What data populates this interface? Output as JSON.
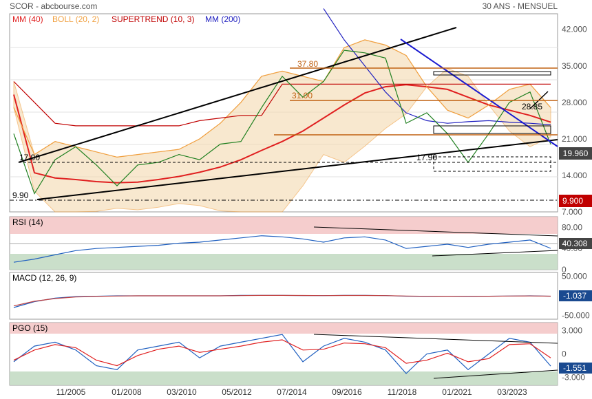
{
  "header": {
    "left": "SCOR - abcbourse.com",
    "right": "30 ANS - MENSUEL"
  },
  "legend": [
    {
      "label": "MM (40)",
      "color": "#e02020"
    },
    {
      "label": "BOLL (20, 2)",
      "color": "#f0a040"
    },
    {
      "label": "SUPERTREND (10, 3)",
      "color": "#c00000"
    },
    {
      "label": "MM (200)",
      "color": "#2020c0"
    }
  ],
  "x_labels": [
    "11/2005",
    "01/2008",
    "03/2010",
    "05/2012",
    "07/2014",
    "09/2016",
    "11/2018",
    "01/2021",
    "03/2023"
  ],
  "annotations": {
    "level_3780": "37.80",
    "level_3100": "31.00",
    "level_2885": "28.85",
    "level_1790_left": "17.90",
    "level_1790_right": "17.90",
    "level_990": "9.90",
    "badge_last": "19.960",
    "badge_low": "9.900"
  },
  "chart_data": [
    {
      "type": "line",
      "name": "price",
      "title": "SCOR - abcbourse.com",
      "ylim": [
        7,
        45
      ],
      "y_ticks": [
        "42.000",
        "35.000",
        "28.000",
        "21.000",
        "14.000",
        "7.000"
      ],
      "last_value": 19.96,
      "series": [
        {
          "name": "MM (40)",
          "color": "#e02020",
          "values": [
            29.5,
            14.5,
            13.5,
            13.2,
            12.8,
            12.6,
            12.7,
            13.2,
            13.8,
            14.6,
            15.6,
            17.0,
            18.8,
            20.5,
            22.5,
            25.0,
            27.5,
            29.8,
            31.0,
            31.4,
            31.0,
            30.5,
            29.0,
            27.5,
            26.5,
            25.5,
            24.2
          ]
        },
        {
          "name": "BOLL (20, 2)",
          "color": "#f0a040",
          "values": [
            27.0,
            18.0,
            20.5,
            19.5,
            18.5,
            17.5,
            18.0,
            18.5,
            19.0,
            21.0,
            24.0,
            28.0,
            33.0,
            34.0,
            33.0,
            32.0,
            38.5,
            40.0,
            39.0,
            37.0,
            31.0,
            26.5,
            25.0,
            27.5,
            30.5,
            31.5,
            27.0
          ]
        },
        {
          "name": "SUPERTREND (10, 3)",
          "color": "#c00000",
          "values": [
            32.0,
            28.0,
            24.0,
            23.5,
            23.5,
            23.5,
            23.5,
            23.5,
            23.5,
            24.5,
            25.0,
            25.5,
            25.5,
            31.5,
            31.5,
            31.5,
            31.5,
            31.5,
            31.5,
            31.5,
            31.5,
            31.5,
            31.5,
            31.5,
            31.5,
            31.5,
            31.5
          ]
        },
        {
          "name": "MM (200)",
          "color": "#2020c0",
          "values": [
            null,
            null,
            null,
            null,
            null,
            null,
            null,
            null,
            null,
            null,
            null,
            null,
            null,
            null,
            null,
            46.0,
            40.0,
            35.0,
            30.0,
            26.0,
            24.5,
            24.0,
            24.3,
            24.5,
            24.2,
            24.0,
            23.7
          ]
        },
        {
          "name": "close",
          "color": "#208020",
          "values": [
            22.0,
            10.5,
            17.0,
            19.5,
            16.0,
            12.0,
            16.0,
            16.5,
            18.0,
            17.0,
            20.0,
            20.5,
            27.0,
            33.0,
            29.0,
            32.0,
            38.0,
            37.5,
            36.5,
            24.0,
            26.0,
            22.0,
            16.5,
            22.0,
            28.0,
            30.0,
            19.96
          ]
        }
      ]
    },
    {
      "type": "line",
      "name": "RSI (14)",
      "title": "RSI (14)",
      "ylim": [
        0,
        100
      ],
      "y_ticks": [
        "80.00",
        "40.00",
        "0"
      ],
      "last_value": 40.308,
      "series": [
        {
          "name": "RSI (14)",
          "color": "#2060c0",
          "values": [
            14,
            20,
            28,
            36,
            40,
            42,
            44,
            46,
            50,
            52,
            56,
            60,
            64,
            62,
            58,
            52,
            60,
            62,
            56,
            40,
            44,
            48,
            42,
            48,
            52,
            56,
            40.3
          ]
        }
      ]
    },
    {
      "type": "line",
      "name": "MACD (12, 26, 9)",
      "title": "MACD (12, 26, 9)",
      "ylim": [
        -60,
        60
      ],
      "y_ticks": [
        "50.000",
        "0",
        "-50.000"
      ],
      "last_value": -1.037,
      "series": [
        {
          "name": "MACD",
          "color": "#2060c0",
          "values": [
            -30,
            -15,
            -6,
            -2,
            -1,
            0,
            0,
            0,
            0,
            0,
            0,
            1,
            1,
            1,
            0.5,
            0.5,
            1,
            1,
            0.5,
            -1,
            -1.5,
            -1,
            -1.5,
            -1,
            -0.5,
            0,
            -1.037
          ]
        },
        {
          "name": "signal",
          "color": "#c04040",
          "values": [
            -26,
            -14,
            -7,
            -3,
            -1.5,
            -0.5,
            0,
            0,
            0,
            0,
            0,
            0.5,
            1,
            1,
            0.8,
            0.6,
            0.8,
            0.9,
            0.6,
            -0.5,
            -1.2,
            -1,
            -1.3,
            -1,
            -0.6,
            -0.3,
            -0.9
          ]
        }
      ]
    },
    {
      "type": "line",
      "name": "PGO (15)",
      "title": "PGO (15)",
      "ylim": [
        -4,
        4
      ],
      "y_ticks": [
        "3.000",
        "0",
        "-3.000"
      ],
      "last_value": -1.551,
      "series": [
        {
          "name": "PGO (15)",
          "color": "#2060c0",
          "values": [
            -1,
            1,
            1.5,
            0.5,
            -1.5,
            -2,
            0.5,
            1,
            1.5,
            -0.5,
            1,
            1.5,
            2,
            2.5,
            -1,
            1,
            2,
            1.5,
            0.5,
            -2.5,
            0,
            0.5,
            -2,
            0,
            2,
            1.5,
            -1.551
          ]
        },
        {
          "name": "signal",
          "color": "#e02020",
          "values": [
            -0.8,
            0.5,
            1.2,
            0.8,
            -0.8,
            -1.5,
            -0.2,
            0.6,
            1.0,
            0.2,
            0.6,
            1.0,
            1.5,
            1.8,
            0.5,
            0.6,
            1.4,
            1.3,
            0.8,
            -1.2,
            -0.8,
            0.1,
            -1.0,
            -0.6,
            1.2,
            1.3,
            -0.5
          ]
        }
      ]
    }
  ]
}
